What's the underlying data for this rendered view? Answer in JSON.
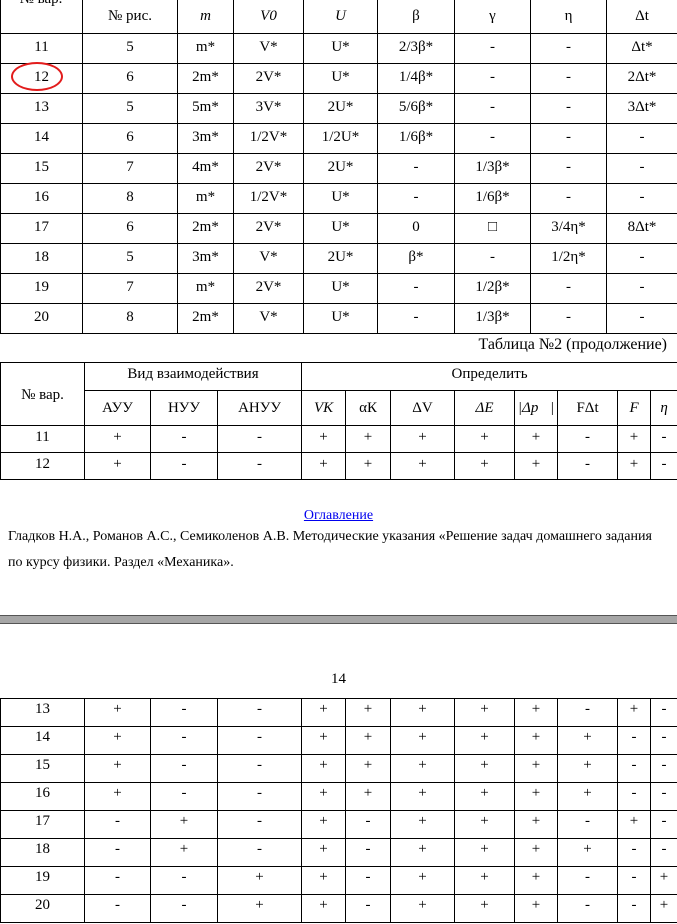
{
  "table1": {
    "headers": [
      "№ вар.",
      "№ рис.",
      "m",
      "V0",
      "U",
      "β",
      "γ",
      "η",
      "Δt"
    ],
    "rows": [
      [
        "11",
        "5",
        "m*",
        "V*",
        "U*",
        "2/3β*",
        "-",
        "-",
        "Δt*"
      ],
      [
        "12",
        "6",
        "2m*",
        "2V*",
        "U*",
        "1/4β*",
        "-",
        "-",
        "2Δt*"
      ],
      [
        "13",
        "5",
        "5m*",
        "3V*",
        "2U*",
        "5/6β*",
        "-",
        "-",
        "3Δt*"
      ],
      [
        "14",
        "6",
        "3m*",
        "1/2V*",
        "1/2U*",
        "1/6β*",
        "-",
        "-",
        "-"
      ],
      [
        "15",
        "7",
        "4m*",
        "2V*",
        "2U*",
        "-",
        "1/3β*",
        "-",
        "-"
      ],
      [
        "16",
        "8",
        "m*",
        "1/2V*",
        "U*",
        "-",
        "1/6β*",
        "-",
        "-"
      ],
      [
        "17",
        "6",
        "2m*",
        "2V*",
        "U*",
        "0",
        "□",
        "3/4η*",
        "8Δt*"
      ],
      [
        "18",
        "5",
        "3m*",
        "V*",
        "2U*",
        "β*",
        "-",
        "1/2η*",
        "-"
      ],
      [
        "19",
        "7",
        "m*",
        "2V*",
        "U*",
        "-",
        "1/2β*",
        "-",
        "-"
      ],
      [
        "20",
        "8",
        "2m*",
        "V*",
        "U*",
        "-",
        "1/3β*",
        "-",
        "-"
      ]
    ],
    "highlighted_variant": "12",
    "highlight_color": "#e21c1c"
  },
  "caption": "Таблица №2 (продолжение)",
  "table2": {
    "var_header": "№ вар.",
    "group1": "Вид взаимодействия",
    "group2": "Определить",
    "subheaders": [
      "АУУ",
      "НУУ",
      "АНУУ",
      "VК",
      "αК",
      "ΔV",
      "ΔE",
      "|Δp⃗|",
      "FΔt",
      "F",
      "η"
    ],
    "rows": [
      [
        "11",
        "+",
        "-",
        "-",
        "+",
        "+",
        "+",
        "+",
        "+",
        "-",
        "+",
        "-"
      ],
      [
        "12",
        "+",
        "-",
        "-",
        "+",
        "+",
        "+",
        "+",
        "+",
        "-",
        "+",
        "-"
      ]
    ]
  },
  "link": "Оглавление",
  "link_color": "#0000ee",
  "reference": "Гладков Н.А., Романов А.С., Семиколенов А.В. Методические указания «Решение задач домашнего задания по курсу физики. Раздел «Механика».",
  "page_number": "14",
  "table3": {
    "rows": [
      [
        "13",
        "+",
        "-",
        "-",
        "+",
        "+",
        "+",
        "+",
        "+",
        "-",
        "+",
        "-"
      ],
      [
        "14",
        "+",
        "-",
        "-",
        "+",
        "+",
        "+",
        "+",
        "+",
        "+",
        "-",
        "-"
      ],
      [
        "15",
        "+",
        "-",
        "-",
        "+",
        "+",
        "+",
        "+",
        "+",
        "+",
        "-",
        "-"
      ],
      [
        "16",
        "+",
        "-",
        "-",
        "+",
        "+",
        "+",
        "+",
        "+",
        "+",
        "-",
        "-"
      ],
      [
        "17",
        "-",
        "+",
        "-",
        "+",
        "-",
        "+",
        "+",
        "+",
        "-",
        "+",
        "-"
      ],
      [
        "18",
        "-",
        "+",
        "-",
        "+",
        "-",
        "+",
        "+",
        "+",
        "+",
        "-",
        "-"
      ],
      [
        "19",
        "-",
        "-",
        "+",
        "+",
        "-",
        "+",
        "+",
        "+",
        "-",
        "-",
        "+"
      ],
      [
        "20",
        "-",
        "-",
        "+",
        "+",
        "-",
        "+",
        "+",
        "+",
        "-",
        "-",
        "+"
      ]
    ]
  }
}
